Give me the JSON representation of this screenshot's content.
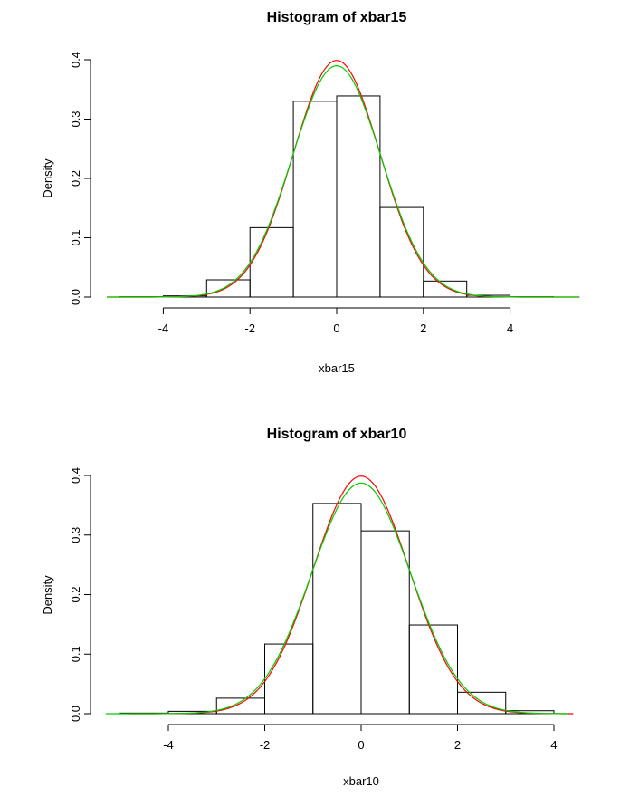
{
  "chart_data": [
    {
      "type": "bar",
      "title": "Histogram of xbar15",
      "xlabel": "xbar15",
      "ylabel": "Density",
      "bin_edges": [
        -5,
        -4,
        -3,
        -2,
        -1,
        0,
        1,
        2,
        3,
        4,
        5
      ],
      "values": [
        0.0005,
        0.002,
        0.029,
        0.117,
        0.33,
        0.339,
        0.151,
        0.027,
        0.003,
        0.0005
      ],
      "xticks": [
        "-4",
        "-2",
        "0",
        "2",
        "4"
      ],
      "xtick_values": [
        -4,
        -2,
        0,
        2,
        4
      ],
      "yticks": [
        "0.0",
        "0.1",
        "0.2",
        "0.3",
        "0.4"
      ],
      "ytick_values": [
        0,
        0.1,
        0.2,
        0.3,
        0.4
      ],
      "curves": [
        {
          "color": "#ff0000",
          "kind": "normal",
          "mean": 0,
          "sd": 1,
          "xrange": [
            -5.3,
            5.6
          ]
        },
        {
          "color": "#00cc00",
          "kind": "normal",
          "mean": 0,
          "sd": 1.023,
          "xrange": [
            -5.3,
            5.6
          ]
        }
      ]
    },
    {
      "type": "bar",
      "title": "Histogram of xbar10",
      "xlabel": "xbar10",
      "ylabel": "Density",
      "bin_edges": [
        -5,
        -4,
        -3,
        -2,
        -1,
        0,
        1,
        2,
        3,
        4
      ],
      "values": [
        0.001,
        0.004,
        0.026,
        0.117,
        0.353,
        0.307,
        0.149,
        0.036,
        0.005
      ],
      "xticks": [
        "-4",
        "-2",
        "0",
        "2",
        "4"
      ],
      "xtick_values": [
        -4,
        -2,
        0,
        2,
        4
      ],
      "yticks": [
        "0.0",
        "0.1",
        "0.2",
        "0.3",
        "0.4"
      ],
      "ytick_values": [
        0,
        0.1,
        0.2,
        0.3,
        0.4
      ],
      "curves": [
        {
          "color": "#ff0000",
          "kind": "normal",
          "mean": 0,
          "sd": 1,
          "xrange": [
            -4.8,
            4.4
          ]
        },
        {
          "color": "#00cc00",
          "kind": "normal",
          "mean": 0,
          "sd": 1.03,
          "xrange": [
            -5.3,
            4.3
          ]
        }
      ]
    }
  ]
}
